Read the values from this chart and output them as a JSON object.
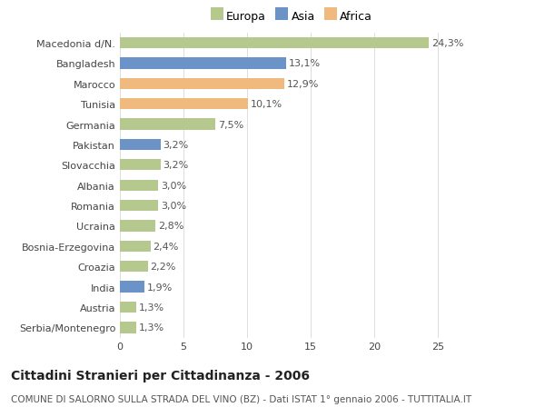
{
  "categories": [
    "Serbia/Montenegro",
    "Austria",
    "India",
    "Croazia",
    "Bosnia-Erzegovina",
    "Ucraina",
    "Romania",
    "Albania",
    "Slovacchia",
    "Pakistan",
    "Germania",
    "Tunisia",
    "Marocco",
    "Bangladesh",
    "Macedonia d/N."
  ],
  "values": [
    1.3,
    1.3,
    1.9,
    2.2,
    2.4,
    2.8,
    3.0,
    3.0,
    3.2,
    3.2,
    7.5,
    10.1,
    12.9,
    13.1,
    24.3
  ],
  "labels": [
    "1,3%",
    "1,3%",
    "1,9%",
    "2,2%",
    "2,4%",
    "2,8%",
    "3,0%",
    "3,0%",
    "3,2%",
    "3,2%",
    "7,5%",
    "10,1%",
    "12,9%",
    "13,1%",
    "24,3%"
  ],
  "continents": [
    "Europa",
    "Europa",
    "Asia",
    "Europa",
    "Europa",
    "Europa",
    "Europa",
    "Europa",
    "Europa",
    "Asia",
    "Europa",
    "Africa",
    "Africa",
    "Asia",
    "Europa"
  ],
  "colors": {
    "Europa": "#b5c98e",
    "Asia": "#6b93c7",
    "Africa": "#f0b97e"
  },
  "legend_order": [
    "Europa",
    "Asia",
    "Africa"
  ],
  "xlim": [
    0,
    27
  ],
  "xticks": [
    0,
    5,
    10,
    15,
    20,
    25
  ],
  "title": "Cittadini Stranieri per Cittadinanza - 2006",
  "subtitle": "COMUNE DI SALORNO SULLA STRADA DEL VINO (BZ) - Dati ISTAT 1° gennaio 2006 - TUTTITALIA.IT",
  "bg_color": "#ffffff",
  "bar_height": 0.55,
  "title_fontsize": 10,
  "subtitle_fontsize": 7.5,
  "label_fontsize": 8,
  "tick_fontsize": 8,
  "legend_fontsize": 9
}
